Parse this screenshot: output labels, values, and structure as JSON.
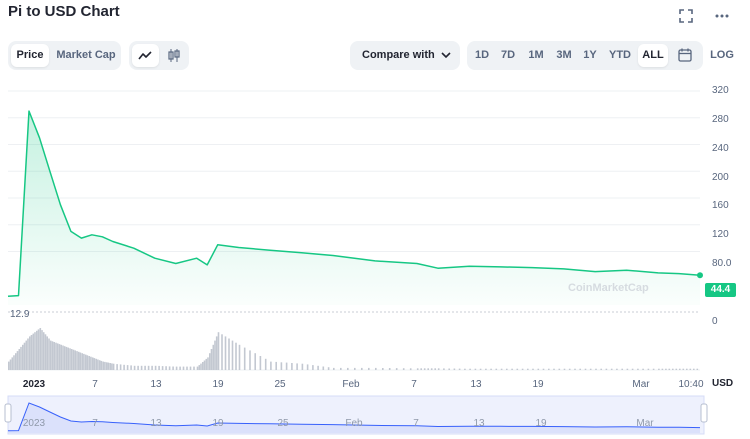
{
  "header": {
    "title": "Pi to USD Chart",
    "fullscreen_icon": "expand-icon",
    "more_icon": "more-horizontal-icon"
  },
  "toolbar": {
    "tabs": [
      "Price",
      "Market Cap"
    ],
    "active_tab": "Price",
    "chart_types": [
      "line-chart-icon",
      "candlestick-icon"
    ],
    "compare_label": "Compare with",
    "ranges": [
      "1D",
      "7D",
      "1M",
      "3M",
      "1Y",
      "YTD",
      "ALL"
    ],
    "active_range": "ALL",
    "calendar_icon": "calendar-icon",
    "log_label": "LOG"
  },
  "chart": {
    "current_price": "44.4",
    "low_label": "12.9",
    "volume_zero_label": "0",
    "currency_label": "USD",
    "watermark": "CoinMarketCap",
    "y_ticks": [
      "320",
      "280",
      "240",
      "200",
      "160",
      "120",
      "80.0"
    ],
    "x_ticks": [
      "2023",
      "7",
      "13",
      "19",
      "25",
      "Feb",
      "7",
      "13",
      "19",
      "Mar",
      "10:40"
    ],
    "navigator_ticks": [
      "2023",
      "7",
      "13",
      "19",
      "25",
      "Feb",
      "7",
      "13",
      "19",
      "Mar"
    ],
    "line_color": "#16c784",
    "navigator_color": "#3861fb"
  },
  "chart_data": {
    "type": "line",
    "title": "Pi to USD Chart",
    "xlabel": "",
    "ylabel": "USD",
    "ylim": [
      0,
      320
    ],
    "x": [
      "2022-12-28",
      "2022-12-29",
      "2022-12-30",
      "2022-12-31",
      "2023-01-01",
      "2023-01-02",
      "2023-01-03",
      "2023-01-04",
      "2023-01-05",
      "2023-01-06",
      "2023-01-07",
      "2023-01-09",
      "2023-01-11",
      "2023-01-13",
      "2023-01-15",
      "2023-01-16",
      "2023-01-17",
      "2023-01-19",
      "2023-01-22",
      "2023-01-25",
      "2023-01-28",
      "2023-02-01",
      "2023-02-05",
      "2023-02-07",
      "2023-02-10",
      "2023-02-13",
      "2023-02-16",
      "2023-02-19",
      "2023-02-22",
      "2023-02-25",
      "2023-02-28",
      "2023-03-02",
      "2023-03-04"
    ],
    "series": [
      {
        "values": [
          13,
          14,
          290,
          250,
          200,
          150,
          110,
          100,
          105,
          102,
          95,
          85,
          70,
          62,
          70,
          60,
          90,
          86,
          82,
          78,
          74,
          66,
          62,
          55,
          58,
          57,
          56,
          54,
          50,
          52,
          48,
          47,
          44.4
        ]
      }
    ],
    "volume_relative": [
      0.2,
      0.5,
      0.8,
      1.0,
      0.7,
      0.6,
      0.5,
      0.4,
      0.3,
      0.2,
      0.15,
      0.1,
      0.1,
      0.08,
      0.08,
      0.3,
      0.9,
      0.6,
      0.2,
      0.15,
      0.05,
      0.05,
      0.04,
      0.04,
      0.03,
      0.03,
      0.03,
      0.03,
      0.03,
      0.03,
      0.03,
      0.03,
      0.03
    ],
    "grid": true,
    "legend": "none"
  }
}
